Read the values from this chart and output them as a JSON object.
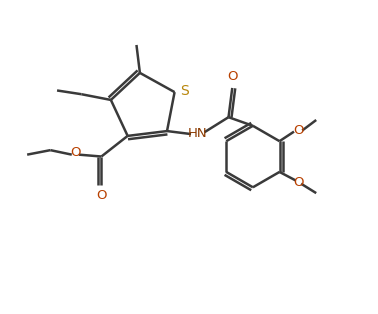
{
  "bg_color": "#ffffff",
  "bond_color": "#3a3a3a",
  "S_color": "#b8860b",
  "O_color": "#b84000",
  "N_color": "#8b3a00",
  "line_width": 1.8,
  "figsize": [
    3.78,
    3.14
  ],
  "dpi": 100,
  "xlim": [
    0,
    10
  ],
  "ylim": [
    0,
    8.3
  ]
}
